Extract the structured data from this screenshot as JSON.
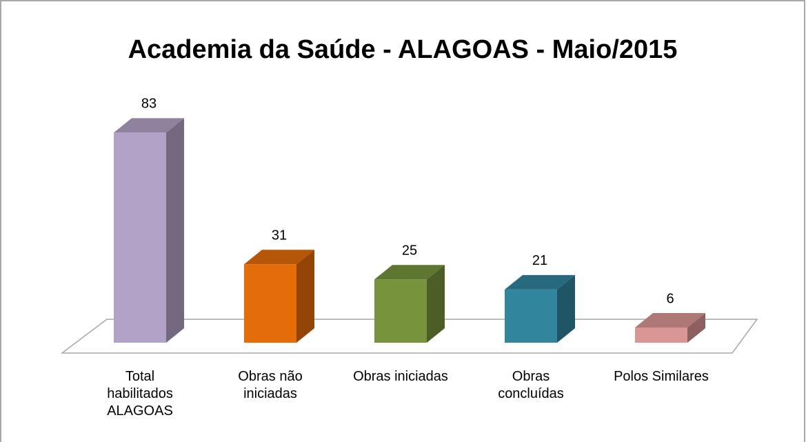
{
  "chart_data": {
    "type": "bar3d",
    "title": "Academia da Saúde - ALAGOAS - Maio/2015",
    "categories": [
      "Total habilitados ALAGOAS",
      "Obras não iniciadas",
      "Obras iniciadas",
      "Obras concluídas",
      "Polos Similares"
    ],
    "values": [
      83,
      31,
      25,
      21,
      6
    ],
    "colors": [
      "#b3a2c7",
      "#e46c0a",
      "#77933c",
      "#31859c",
      "#d99694"
    ]
  }
}
